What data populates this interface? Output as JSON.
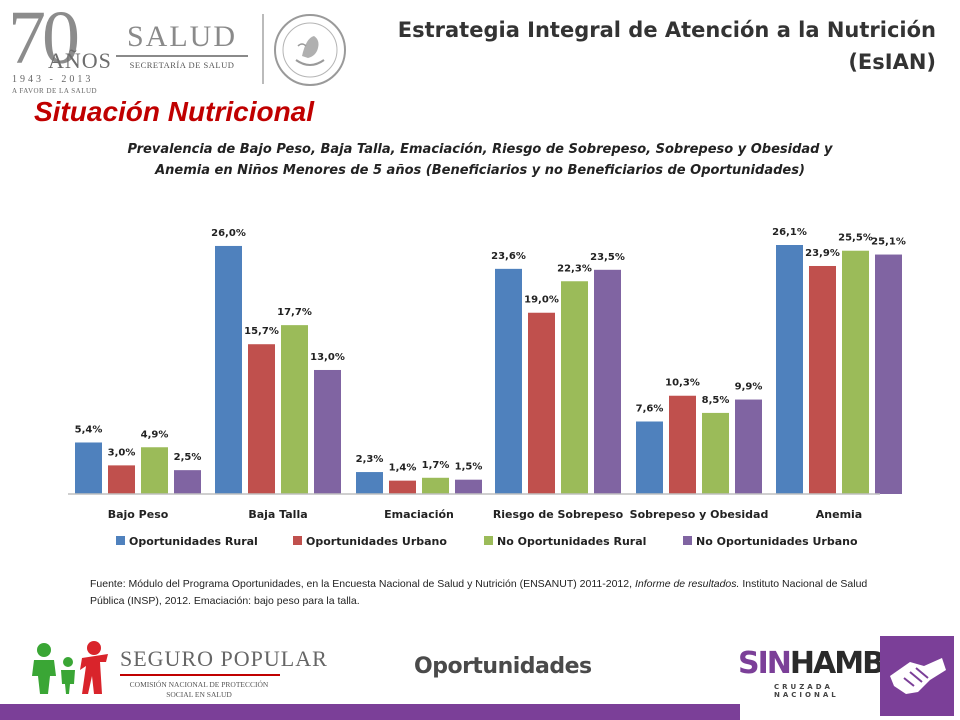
{
  "header": {
    "anniversary": {
      "number": "70",
      "word": "AÑOS",
      "years": "1943 - 2013",
      "tagline": "A FAVOR DE LA SALUD"
    },
    "salud": {
      "name": "SALUD",
      "sub": "SECRETARÍA DE SALUD"
    },
    "title_line1": "Estrategia Integral de Atención a la Nutrición",
    "title_line2": "(EsIAN)"
  },
  "section_title": "Situación Nutricional",
  "source": {
    "part1": "Fuente: Módulo del Programa Oportunidades, en la Encuesta Nacional de Salud y Nutrición (ENSANUT) 2011-2012,",
    "italic": "Informe de resultados.",
    "part2": "Instituto Nacional de Salud Pública (INSP), 2012. Emaciación: bajo peso para la talla."
  },
  "footer": {
    "seguro_name": "SEGURO POPULAR",
    "seguro_sub": "COMISIÓN NACIONAL DE PROTECCIÓN SOCIAL EN SALUD",
    "oportunidades": "Oportunidades",
    "sin": "SIN",
    "hambre": "HAMBRE",
    "cruzada": "CRUZADA NACIONAL"
  },
  "chart_data": {
    "type": "bar",
    "title_line1": "Prevalencia de Bajo Peso, Baja Talla, Emaciación, Riesgo de Sobrepeso, Sobrepeso y Obesidad y",
    "title_line2": "Anemia en Niños Menores de 5 años (Beneficiarios y no Beneficiarios de Oportunidades)",
    "categories": [
      "Bajo Peso",
      "Baja Talla",
      "Emaciación",
      "Riesgo de Sobrepeso",
      "Sobrepeso y Obesidad",
      "Anemia"
    ],
    "series": [
      {
        "name": "Oportunidades Rural",
        "color": "#4f81bd",
        "values": [
          5.4,
          26.0,
          2.3,
          23.6,
          7.6,
          26.1
        ],
        "labels": [
          "5,4%",
          "26,0%",
          "2,3%",
          "23,6%",
          "7,6%",
          "26,1%"
        ]
      },
      {
        "name": "Oportunidades Urbano",
        "color": "#c0504d",
        "values": [
          3.0,
          15.7,
          1.4,
          19.0,
          10.3,
          23.9
        ],
        "labels": [
          "3,0%",
          "15,7%",
          "1,4%",
          "19,0%",
          "10,3%",
          "23,9%"
        ]
      },
      {
        "name": "No Oportunidades Rural",
        "color": "#9bbb59",
        "values": [
          4.9,
          17.7,
          1.7,
          22.3,
          8.5,
          25.5
        ],
        "labels": [
          "4,9%",
          "17,7%",
          "1,7%",
          "22,3%",
          "8,5%",
          "25,5%"
        ]
      },
      {
        "name": "No Oportunidades Urbano",
        "color": "#8064a2",
        "values": [
          2.5,
          13.0,
          1.5,
          23.5,
          9.9,
          25.1
        ],
        "labels": [
          "2,5%",
          "13,0%",
          "1,5%",
          "23,5%",
          "9,9%",
          "25,1%"
        ]
      }
    ],
    "ylim": [
      0,
      26.1
    ],
    "grid": false,
    "legend": "bottom"
  }
}
